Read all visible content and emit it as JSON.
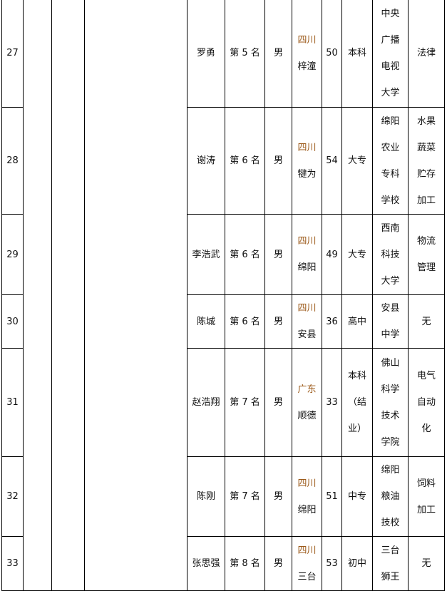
{
  "accent_color": "#9c5a1a",
  "rows": [
    {
      "no": "27",
      "name": "罗勇",
      "rank": "第 5 名",
      "gender": "男",
      "province": "四川",
      "city": "梓潼",
      "age": "50",
      "edu": [
        "本科"
      ],
      "school": [
        "中央",
        "广播",
        "电视",
        "大学"
      ],
      "major": [
        "法律"
      ]
    },
    {
      "no": "28",
      "name": "谢涛",
      "rank": "第 6 名",
      "gender": "男",
      "province": "四川",
      "city": "犍为",
      "age": "54",
      "edu": [
        "大专"
      ],
      "school": [
        "绵阳",
        "农业",
        "专科",
        "学校"
      ],
      "major": [
        "水果",
        "蔬菜",
        "贮存",
        "加工"
      ]
    },
    {
      "no": "29",
      "name": "李浩武",
      "rank": "第 6 名",
      "gender": "男",
      "province": "四川",
      "city": "绵阳",
      "age": "49",
      "edu": [
        "大专"
      ],
      "school": [
        "西南",
        "科技",
        "大学"
      ],
      "major": [
        "物流",
        "管理"
      ]
    },
    {
      "no": "30",
      "name": "陈城",
      "rank": "第 6 名",
      "gender": "男",
      "province": "四川",
      "city": "安县",
      "age": "36",
      "edu": [
        "高中"
      ],
      "school": [
        "安县",
        "中学"
      ],
      "major": [
        "无"
      ]
    },
    {
      "no": "31",
      "name": "赵浩翔",
      "rank": "第 7 名",
      "gender": "男",
      "province": "广东",
      "city": "顺德",
      "age": "33",
      "edu": [
        "本科",
        "（结",
        "业）"
      ],
      "school": [
        "佛山",
        "科学",
        "技术",
        "学院"
      ],
      "major": [
        "电气",
        "自动",
        "化"
      ]
    },
    {
      "no": "32",
      "name": "陈刚",
      "rank": "第 7 名",
      "gender": "男",
      "province": "四川",
      "city": "绵阳",
      "age": "51",
      "edu": [
        "中专"
      ],
      "school": [
        "绵阳",
        "粮油",
        "技校"
      ],
      "major": [
        "饲料",
        "加工"
      ]
    },
    {
      "no": "33",
      "name": "张思强",
      "rank": "第 8 名",
      "gender": "男",
      "province": "四川",
      "city": "三台",
      "age": "53",
      "edu": [
        "初中"
      ],
      "school": [
        "三台",
        "狮王"
      ],
      "major": [
        "无"
      ]
    }
  ]
}
